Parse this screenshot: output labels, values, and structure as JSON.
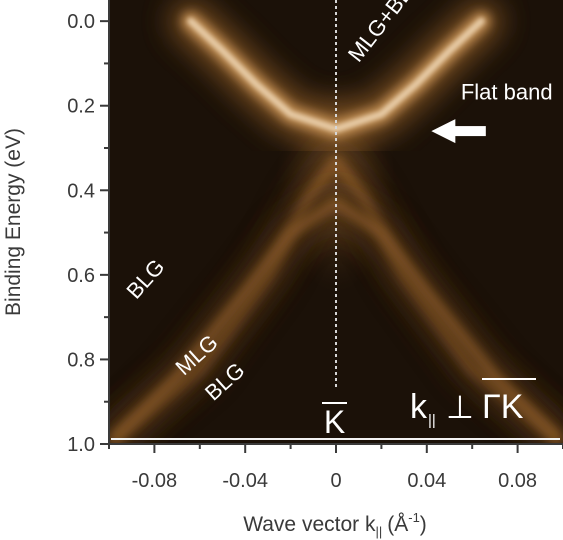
{
  "chart_data": {
    "type": "heatmap",
    "title": "",
    "xlabel": "Wave vector k",
    "xlabel_subscript": "||",
    "xlabel_unit": "(Å",
    "xlabel_unit_sup": "-1",
    "xlabel_unit_close": ")",
    "ylabel": "Binding Energy (eV)",
    "xlim": [
      -0.1,
      0.1
    ],
    "ylim": [
      -0.05,
      1.0
    ],
    "y_inverted": true,
    "x_ticks": [
      -0.08,
      -0.04,
      0,
      0.04,
      0.08
    ],
    "x_tick_labels": [
      "-0.08",
      "-0.04",
      "0",
      "0.04",
      "0.08"
    ],
    "x_minor_ticks": [
      -0.1,
      -0.06,
      -0.02,
      0.02,
      0.06,
      0.1
    ],
    "y_ticks": [
      0.0,
      0.2,
      0.4,
      0.6,
      0.8,
      1.0
    ],
    "y_tick_labels": [
      "0.0",
      "0.2",
      "0.4",
      "0.6",
      "0.8",
      "1.0"
    ],
    "y_minor_ticks": [
      0.1,
      0.3,
      0.5,
      0.7,
      0.9
    ],
    "colormap": [
      "#150d05",
      "#4a2e12",
      "#8a5a28",
      "#c9955a",
      "#f2dcbc"
    ],
    "bands": [
      {
        "name": "BLG",
        "points": [
          [
            -0.096,
            0.98
          ],
          [
            -0.06,
            0.82
          ],
          [
            -0.03,
            0.6
          ],
          [
            -0.012,
            0.42
          ],
          [
            0,
            0.33
          ],
          [
            0.012,
            0.42
          ],
          [
            0.03,
            0.6
          ],
          [
            0.06,
            0.82
          ],
          [
            0.096,
            0.98
          ]
        ]
      },
      {
        "name": "MLG",
        "points": [
          [
            -0.098,
            0.99
          ],
          [
            -0.07,
            0.84
          ],
          [
            -0.04,
            0.64
          ],
          [
            -0.02,
            0.5
          ],
          [
            0,
            0.43
          ],
          [
            0.02,
            0.5
          ],
          [
            0.04,
            0.64
          ],
          [
            0.07,
            0.84
          ],
          [
            0.098,
            0.99
          ]
        ]
      },
      {
        "name": "MLG+BLG",
        "points": [
          [
            -0.064,
            0.0
          ],
          [
            -0.05,
            0.07
          ],
          [
            -0.035,
            0.15
          ],
          [
            -0.02,
            0.22
          ],
          [
            0,
            0.255
          ],
          [
            0.02,
            0.22
          ],
          [
            0.035,
            0.15
          ],
          [
            0.05,
            0.07
          ],
          [
            0.064,
            0.0
          ]
        ]
      },
      {
        "name": "Flat band",
        "points": [
          [
            -0.018,
            0.252
          ],
          [
            0.018,
            0.252
          ]
        ]
      }
    ],
    "annotations": [
      {
        "text": "MLG+BLG",
        "x": 0.01,
        "y": 0.1,
        "rotation": -52
      },
      {
        "text": "Flat band",
        "x": 0.055,
        "y": 0.185
      },
      {
        "text": "BLG",
        "x": -0.088,
        "y": 0.66,
        "rotation": -48
      },
      {
        "text": "MLG",
        "x": -0.067,
        "y": 0.84,
        "rotation": -42
      },
      {
        "text": "BLG",
        "x": -0.054,
        "y": 0.9,
        "rotation": -42
      }
    ],
    "arrow": {
      "from": [
        0.066,
        0.26
      ],
      "to": [
        0.042,
        0.26
      ],
      "color": "#ffffff"
    },
    "dashed_line": {
      "x": 0,
      "y_range": [
        -0.05,
        0.87
      ],
      "color": "#d6d6d6"
    },
    "k_point_label": "K",
    "direction_label": {
      "k": "k",
      "k_sub": "||",
      "perp": "⊥",
      "gamma_k": "ΓK"
    }
  }
}
